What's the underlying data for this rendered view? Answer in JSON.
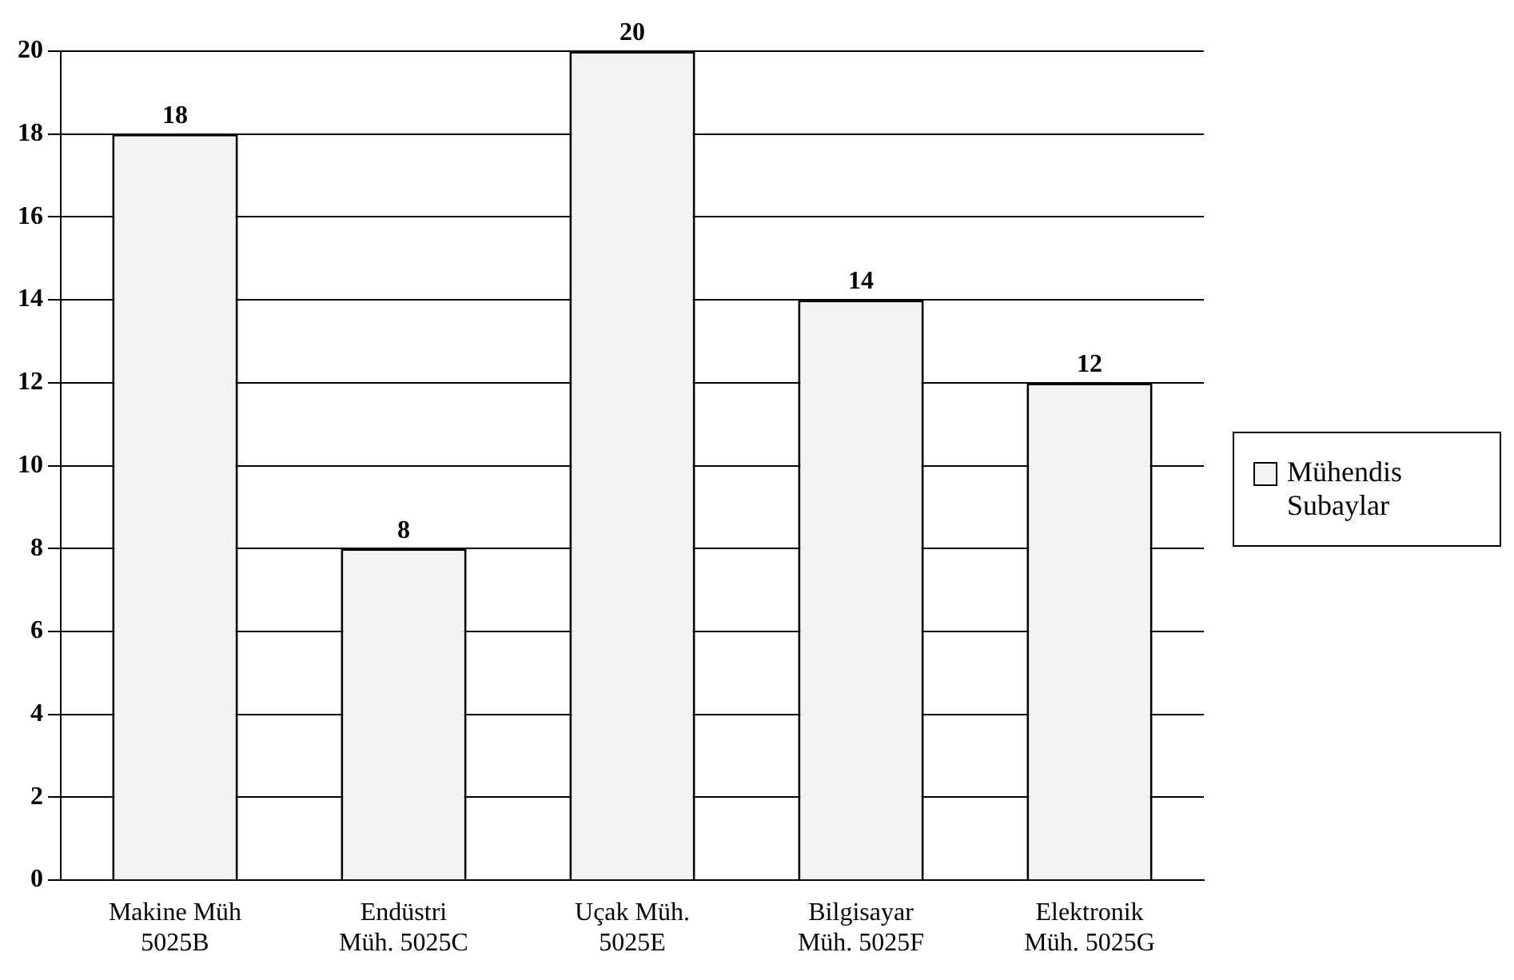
{
  "chart_data": {
    "type": "bar",
    "categories": [
      "Makine Müh\n5025B",
      "Endüstri\nMüh. 5025C",
      "Uçak Müh.\n5025E",
      "Bilgisayar\nMüh. 5025F",
      "Elektronik\nMüh. 5025G"
    ],
    "series": [
      {
        "name": "Mühendis Subaylar",
        "color": "#f2f2f2",
        "values": [
          18,
          8,
          20,
          14,
          12
        ]
      }
    ],
    "ylim": [
      0,
      20
    ],
    "yticks": [
      0,
      2,
      4,
      6,
      8,
      10,
      12,
      14,
      16,
      18,
      20
    ],
    "grid": "y",
    "legend": "right",
    "data_labels": true
  }
}
